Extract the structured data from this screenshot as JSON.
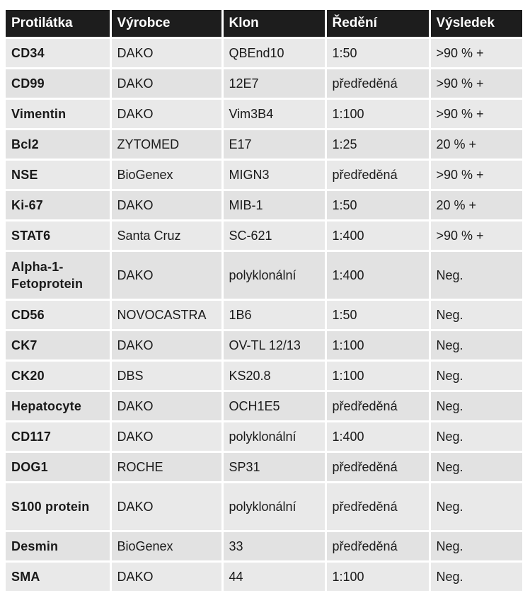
{
  "table": {
    "headers": [
      "Protilátka",
      "Výrobce",
      "Klon",
      "Ředění",
      "Výsledek"
    ],
    "rows": [
      {
        "protilatka": "CD34",
        "vyrobce": "DAKO",
        "klon": "QBEnd10",
        "redeni": "1:50",
        "vysledek": ">90 % +"
      },
      {
        "protilatka": "CD99",
        "vyrobce": "DAKO",
        "klon": "12E7",
        "redeni": "předředěná",
        "vysledek": ">90 % +"
      },
      {
        "protilatka": "Vimentin",
        "vyrobce": "DAKO",
        "klon": "Vim3B4",
        "redeni": "1:100",
        "vysledek": ">90 % +"
      },
      {
        "protilatka": "Bcl2",
        "vyrobce": "ZYTOMED",
        "klon": "E17",
        "redeni": "1:25",
        "vysledek": "20 % +"
      },
      {
        "protilatka": "NSE",
        "vyrobce": "BioGenex",
        "klon": "MIGN3",
        "redeni": "předředěná",
        "vysledek": ">90 % +"
      },
      {
        "protilatka": "Ki-67",
        "vyrobce": "DAKO",
        "klon": "MIB-1",
        "redeni": "1:50",
        "vysledek": "20 % +"
      },
      {
        "protilatka": "STAT6",
        "vyrobce": "Santa Cruz",
        "klon": "SC-621",
        "redeni": "1:400",
        "vysledek": ">90 % +"
      },
      {
        "protilatka": "Alpha-1-Fetoprotein",
        "vyrobce": "DAKO",
        "klon": "polyklonální",
        "redeni": "1:400",
        "vysledek": "Neg."
      },
      {
        "protilatka": "CD56",
        "vyrobce": "NOVOCASTRA",
        "klon": "1B6",
        "redeni": "1:50",
        "vysledek": "Neg."
      },
      {
        "protilatka": "CK7",
        "vyrobce": "DAKO",
        "klon": "OV-TL 12/13",
        "redeni": "1:100",
        "vysledek": "Neg."
      },
      {
        "protilatka": "CK20",
        "vyrobce": "DBS",
        "klon": "KS20.8",
        "redeni": "1:100",
        "vysledek": "Neg."
      },
      {
        "protilatka": "Hepatocyte",
        "vyrobce": "DAKO",
        "klon": "OCH1E5",
        "redeni": "předředěná",
        "vysledek": "Neg."
      },
      {
        "protilatka": "CD117",
        "vyrobce": "DAKO",
        "klon": "polyklonální",
        "redeni": "1:400",
        "vysledek": "Neg."
      },
      {
        "protilatka": "DOG1",
        "vyrobce": "ROCHE",
        "klon": "SP31",
        "redeni": "předředěná",
        "vysledek": "Neg."
      },
      {
        "protilatka": "S100 protein",
        "vyrobce": "DAKO",
        "klon": "polyklonální",
        "redeni": "předředěná",
        "vysledek": "Neg."
      },
      {
        "protilatka": "Desmin",
        "vyrobce": "BioGenex",
        "klon": "33",
        "redeni": "předředěná",
        "vysledek": "Neg."
      },
      {
        "protilatka": "SMA",
        "vyrobce": "DAKO",
        "klon": "44",
        "redeni": "1:100",
        "vysledek": "Neg."
      }
    ]
  }
}
